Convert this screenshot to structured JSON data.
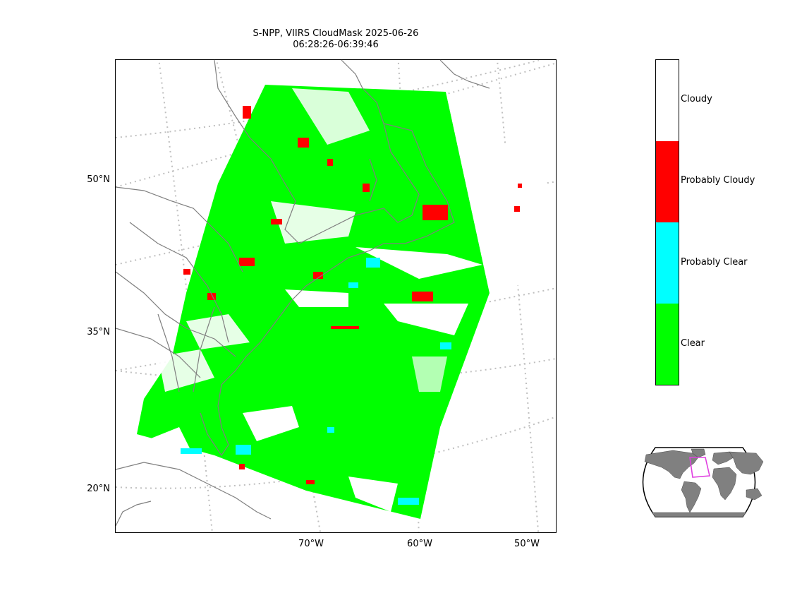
{
  "title": {
    "line1": "S-NPP, VIIRS CloudMask 2025-06-26",
    "line2": "06:28:26-06:39:46"
  },
  "map": {
    "lat_labels": [
      "50°N",
      "35°N",
      "20°N"
    ],
    "lon_labels": [
      "70°W",
      "60°W",
      "50°W"
    ]
  },
  "colorbar": {
    "categories": [
      {
        "label": "Cloudy",
        "color": "#ffffff"
      },
      {
        "label": "Probably Cloudy",
        "color": "#ff0000"
      },
      {
        "label": "Probably Clear",
        "color": "#00ffff"
      },
      {
        "label": "Clear",
        "color": "#00ff00"
      }
    ]
  },
  "colors": {
    "clear": "#00ff00",
    "probably_clear": "#00ffff",
    "probably_cloudy": "#ff0000",
    "coastline": "#7f7f7f",
    "graticule": "#bfbfbf",
    "inset_land": "#808080",
    "inset_box": "#e040e0"
  }
}
